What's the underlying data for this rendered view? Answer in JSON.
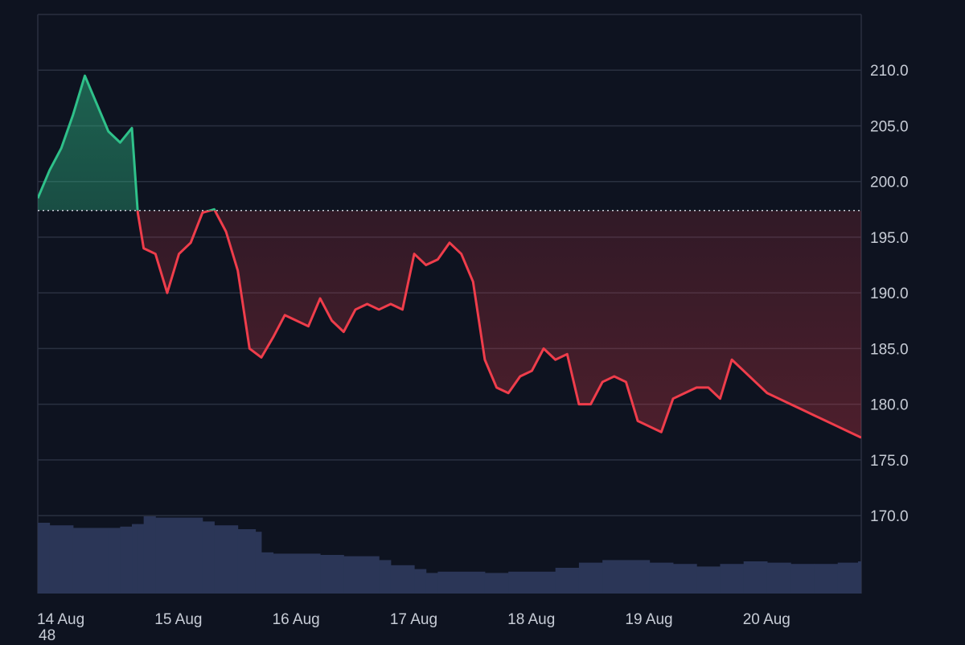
{
  "colors": {
    "background": "#0e1320",
    "grid": "#2a3040",
    "up_line": "#2fc18a",
    "down_line": "#ef3d4b",
    "up_fill": "#1f7a58",
    "down_fill": "#5a1a26",
    "baseline": "#c9ced8",
    "volume": "#2b3657",
    "text": "#c7ccd6"
  },
  "chart_data": {
    "type": "area",
    "baseline": 197.4,
    "y_ticks": [
      "170.0",
      "175.0",
      "180.0",
      "185.0",
      "190.0",
      "195.0",
      "200.0",
      "205.0",
      "210.0"
    ],
    "x_ticks": [
      "14 Aug",
      "15 Aug",
      "16 Aug",
      "17 Aug",
      "18 Aug",
      "19 Aug",
      "20 Aug"
    ],
    "ylim": [
      163,
      215
    ],
    "grid": true,
    "series": [
      {
        "x": [
          0.0,
          0.1,
          0.2,
          0.3,
          0.4,
          0.5,
          0.6,
          0.7,
          0.8,
          0.85,
          0.9,
          1.0,
          1.1,
          1.2,
          1.3,
          1.4,
          1.5,
          1.6,
          1.7,
          1.8,
          1.9,
          2.0,
          2.1,
          2.2,
          2.3,
          2.4,
          2.5,
          2.6,
          2.7,
          2.8,
          2.9,
          3.0,
          3.1,
          3.2,
          3.3,
          3.4,
          3.5,
          3.6,
          3.7,
          3.8,
          3.9,
          4.0,
          4.1,
          4.2,
          4.3,
          4.4,
          4.5,
          4.6,
          4.7,
          4.8,
          4.9,
          5.0,
          5.1,
          5.2,
          5.3,
          5.4,
          5.5,
          5.6,
          5.7,
          5.8,
          5.9,
          6.0,
          6.1,
          6.2,
          6.3,
          6.4,
          6.5,
          6.6,
          6.7,
          6.8,
          6.9,
          7.0
        ],
        "y": [
          198.5,
          201.0,
          203.0,
          206.0,
          209.5,
          207.0,
          204.5,
          203.5,
          204.8,
          197.2,
          194.0,
          193.5,
          190.0,
          193.5,
          194.5,
          197.2,
          197.5,
          195.5,
          192.0,
          185.0,
          184.2,
          186.0,
          188.0,
          187.5,
          187.0,
          189.5,
          187.5,
          186.5,
          188.5,
          189.0,
          188.5,
          189.0,
          188.5,
          193.5,
          192.5,
          193.0,
          194.5,
          193.5,
          191.0,
          184.0,
          181.5,
          181.0,
          182.5,
          183.0,
          185.0,
          184.0,
          184.5,
          180.0,
          180.0,
          182.0,
          182.5,
          182.0,
          178.5,
          178.0,
          177.5,
          180.5,
          181.0,
          181.5,
          181.5,
          180.5,
          184.0,
          183.0,
          182.0,
          181.0,
          180.5,
          180.0,
          179.5,
          179.0,
          178.5,
          178.0,
          177.5,
          177.0
        ]
      }
    ],
    "volume": [
      [
        0.0,
        5.5
      ],
      [
        0.1,
        5.3
      ],
      [
        0.3,
        5.1
      ],
      [
        0.6,
        5.1
      ],
      [
        0.7,
        5.2
      ],
      [
        0.8,
        5.4
      ],
      [
        0.85,
        5.4
      ],
      [
        0.9,
        6.0
      ],
      [
        1.0,
        5.9
      ],
      [
        1.3,
        5.9
      ],
      [
        1.4,
        5.6
      ],
      [
        1.5,
        5.3
      ],
      [
        1.7,
        5.0
      ],
      [
        1.85,
        4.8
      ],
      [
        1.9,
        3.2
      ],
      [
        2.0,
        3.1
      ],
      [
        2.4,
        3.0
      ],
      [
        2.6,
        2.9
      ],
      [
        2.9,
        2.6
      ],
      [
        3.0,
        2.2
      ],
      [
        3.2,
        1.9
      ],
      [
        3.3,
        1.6
      ],
      [
        3.4,
        1.7
      ],
      [
        3.8,
        1.6
      ],
      [
        4.0,
        1.7
      ],
      [
        4.4,
        2.0
      ],
      [
        4.6,
        2.4
      ],
      [
        4.8,
        2.6
      ],
      [
        5.0,
        2.6
      ],
      [
        5.2,
        2.4
      ],
      [
        5.4,
        2.3
      ],
      [
        5.6,
        2.1
      ],
      [
        5.8,
        2.3
      ],
      [
        6.0,
        2.5
      ],
      [
        6.2,
        2.4
      ],
      [
        6.4,
        2.3
      ],
      [
        6.6,
        2.3
      ],
      [
        6.8,
        2.4
      ],
      [
        7.0,
        2.5
      ]
    ],
    "volume_label": "48"
  }
}
